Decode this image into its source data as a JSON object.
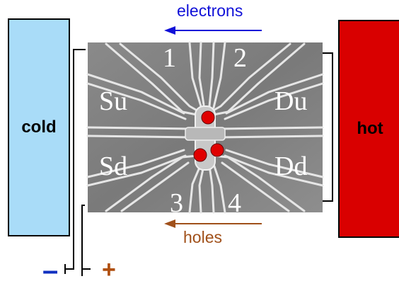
{
  "reservoirs": {
    "cold": {
      "label": "cold",
      "color": "#a9dcf8"
    },
    "hot": {
      "label": "hot",
      "color": "#d90000"
    }
  },
  "arrows": {
    "electrons": {
      "label": "electrons",
      "color": "#1010d8",
      "direction": "left"
    },
    "holes": {
      "label": "holes",
      "color": "#a0501a",
      "direction": "left"
    }
  },
  "device": {
    "gate_labels": {
      "su": "Su",
      "du": "Du",
      "sd": "Sd",
      "dd": "Dd",
      "g1": "1",
      "g2": "2",
      "g3": "3",
      "g4": "4"
    },
    "dot_color": "#e00000",
    "dot_count": 3
  },
  "battery": {
    "minus": "–",
    "plus": "+",
    "minus_color": "#1030c0",
    "plus_color": "#b05010"
  }
}
